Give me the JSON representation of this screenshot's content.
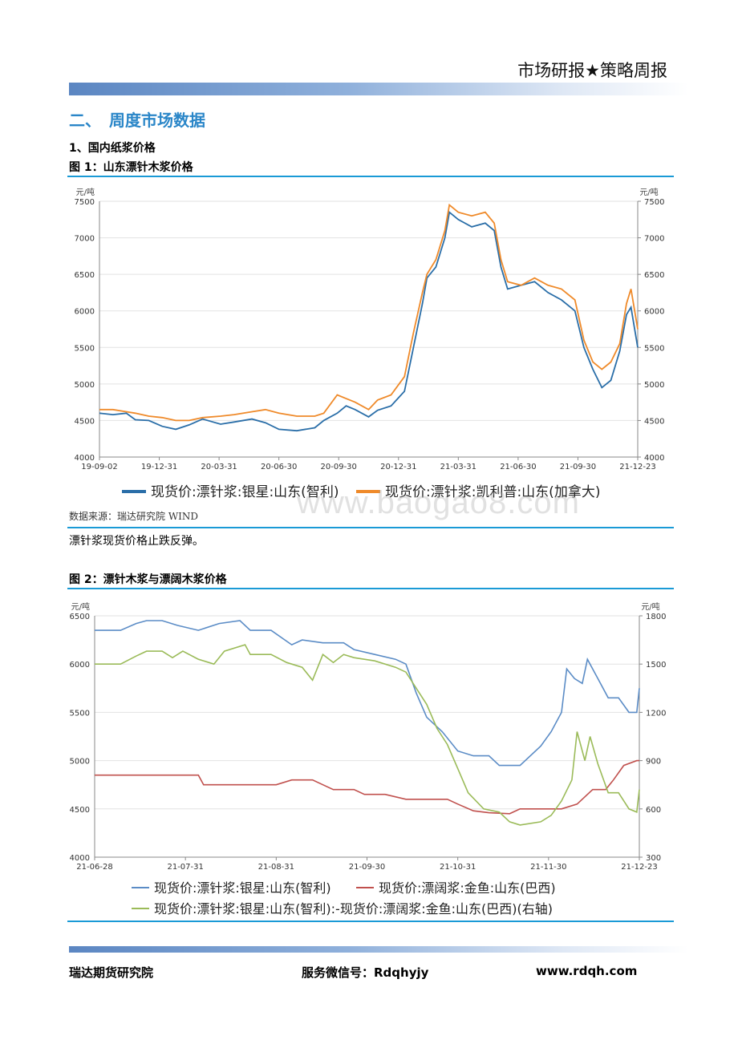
{
  "header": {
    "title": "市场研报★策略周报"
  },
  "section": {
    "title": "二、　周度市场数据",
    "sub1": "1、国内纸浆价格"
  },
  "source_text": "数据来源：瑞达研究院 WIND",
  "comment": "漂针浆现货价格止跌反弹。",
  "watermark": "www.baogao8.com",
  "footer": {
    "org": "瑞达期货研究院",
    "wechat": "服务微信号：Rdqhyjy",
    "url": "www.rdqh.com"
  },
  "chart_data": [
    {
      "type": "line",
      "title": "图 1：山东漂针木浆价格",
      "ylabel_left": "元/吨",
      "ylabel_right": "元/吨",
      "ylim": [
        4000,
        7500
      ],
      "y_ticks": [
        4000,
        4500,
        5000,
        5500,
        6000,
        6500,
        7000,
        7500
      ],
      "x_ticks": [
        "19-09-02",
        "19-12-31",
        "20-03-31",
        "20-06-30",
        "20-09-30",
        "20-12-31",
        "21-03-31",
        "21-06-30",
        "21-09-30",
        "21-12-23"
      ],
      "colors": {
        "s1": "#2a6ea8",
        "s2": "#ef8a2a"
      },
      "series": [
        {
          "name": "现货价:漂针浆:银星:山东(智利)",
          "points": [
            [
              0,
              4600
            ],
            [
              0.3,
              4580
            ],
            [
              0.6,
              4600
            ],
            [
              0.8,
              4510
            ],
            [
              1.1,
              4500
            ],
            [
              1.4,
              4420
            ],
            [
              1.7,
              4380
            ],
            [
              2.0,
              4440
            ],
            [
              2.3,
              4520
            ],
            [
              2.7,
              4450
            ],
            [
              3.0,
              4480
            ],
            [
              3.4,
              4520
            ],
            [
              3.7,
              4470
            ],
            [
              4.0,
              4380
            ],
            [
              4.4,
              4360
            ],
            [
              4.8,
              4400
            ],
            [
              5.0,
              4500
            ],
            [
              5.3,
              4600
            ],
            [
              5.5,
              4700
            ],
            [
              5.7,
              4650
            ],
            [
              6.0,
              4550
            ],
            [
              6.2,
              4640
            ],
            [
              6.5,
              4700
            ],
            [
              6.8,
              4900
            ],
            [
              7.0,
              5500
            ],
            [
              7.2,
              6100
            ],
            [
              7.3,
              6450
            ],
            [
              7.5,
              6600
            ],
            [
              7.7,
              7000
            ],
            [
              7.8,
              7350
            ],
            [
              8.0,
              7250
            ],
            [
              8.3,
              7150
            ],
            [
              8.6,
              7200
            ],
            [
              8.8,
              7100
            ],
            [
              8.95,
              6600
            ],
            [
              9.1,
              6300
            ],
            [
              9.4,
              6350
            ],
            [
              9.7,
              6400
            ],
            [
              10.0,
              6250
            ],
            [
              10.3,
              6150
            ],
            [
              10.6,
              6000
            ],
            [
              10.8,
              5500
            ],
            [
              11.0,
              5200
            ],
            [
              11.2,
              4950
            ],
            [
              11.4,
              5050
            ],
            [
              11.6,
              5450
            ],
            [
              11.75,
              5950
            ],
            [
              11.85,
              6050
            ],
            [
              12.0,
              5500
            ]
          ]
        },
        {
          "name": "现货价:漂针浆:凯利普:山东(加拿大)",
          "points": [
            [
              0,
              4650
            ],
            [
              0.3,
              4650
            ],
            [
              0.6,
              4620
            ],
            [
              0.8,
              4600
            ],
            [
              1.1,
              4560
            ],
            [
              1.4,
              4540
            ],
            [
              1.7,
              4500
            ],
            [
              2.0,
              4500
            ],
            [
              2.3,
              4540
            ],
            [
              2.7,
              4560
            ],
            [
              3.0,
              4580
            ],
            [
              3.4,
              4620
            ],
            [
              3.7,
              4650
            ],
            [
              4.0,
              4600
            ],
            [
              4.4,
              4560
            ],
            [
              4.8,
              4560
            ],
            [
              5.0,
              4600
            ],
            [
              5.3,
              4850
            ],
            [
              5.5,
              4800
            ],
            [
              5.7,
              4750
            ],
            [
              6.0,
              4650
            ],
            [
              6.2,
              4780
            ],
            [
              6.5,
              4850
            ],
            [
              6.8,
              5100
            ],
            [
              7.0,
              5700
            ],
            [
              7.2,
              6250
            ],
            [
              7.3,
              6500
            ],
            [
              7.5,
              6700
            ],
            [
              7.7,
              7100
            ],
            [
              7.8,
              7450
            ],
            [
              8.0,
              7350
            ],
            [
              8.3,
              7300
            ],
            [
              8.6,
              7350
            ],
            [
              8.8,
              7200
            ],
            [
              8.95,
              6700
            ],
            [
              9.1,
              6400
            ],
            [
              9.4,
              6350
            ],
            [
              9.7,
              6450
            ],
            [
              10.0,
              6350
            ],
            [
              10.3,
              6300
            ],
            [
              10.6,
              6150
            ],
            [
              10.8,
              5600
            ],
            [
              11.0,
              5300
            ],
            [
              11.2,
              5200
            ],
            [
              11.4,
              5300
            ],
            [
              11.6,
              5550
            ],
            [
              11.75,
              6100
            ],
            [
              11.85,
              6300
            ],
            [
              12.0,
              5750
            ]
          ]
        }
      ]
    },
    {
      "type": "line",
      "title": "图 2：漂针木浆与漂阔木浆价格",
      "ylabel_left": "元/吨",
      "ylabel_right": "元/吨",
      "ylim": [
        4000,
        6500
      ],
      "ylim_right": [
        300,
        1800
      ],
      "y_ticks": [
        4000,
        4500,
        5000,
        5500,
        6000,
        6500
      ],
      "y_ticks_right": [
        300,
        600,
        900,
        1200,
        1500,
        1800
      ],
      "x_ticks": [
        "21-06-28",
        "21-07-31",
        "21-08-31",
        "21-09-30",
        "21-10-31",
        "21-11-30",
        "21-12-23"
      ],
      "colors": {
        "s1": "#5b8cc6",
        "s2": "#c0504d",
        "s3": "#9bbb59"
      },
      "series": [
        {
          "name": "现货价:漂针浆:银星:山东(智利)",
          "points": [
            [
              0,
              6350
            ],
            [
              0.5,
              6350
            ],
            [
              0.8,
              6420
            ],
            [
              1.0,
              6450
            ],
            [
              1.3,
              6450
            ],
            [
              1.6,
              6400
            ],
            [
              2.0,
              6350
            ],
            [
              2.4,
              6420
            ],
            [
              2.8,
              6450
            ],
            [
              3.0,
              6350
            ],
            [
              3.4,
              6350
            ],
            [
              3.8,
              6200
            ],
            [
              4.0,
              6250
            ],
            [
              4.4,
              6220
            ],
            [
              4.8,
              6220
            ],
            [
              5.0,
              6150
            ],
            [
              5.4,
              6100
            ],
            [
              5.8,
              6050
            ],
            [
              6.0,
              6000
            ],
            [
              6.2,
              5700
            ],
            [
              6.4,
              5450
            ],
            [
              6.7,
              5300
            ],
            [
              7.0,
              5100
            ],
            [
              7.3,
              5050
            ],
            [
              7.6,
              5050
            ],
            [
              7.8,
              4950
            ],
            [
              8.2,
              4950
            ],
            [
              8.6,
              5150
            ],
            [
              8.8,
              5300
            ],
            [
              9.0,
              5500
            ],
            [
              9.1,
              5950
            ],
            [
              9.25,
              5850
            ],
            [
              9.4,
              5800
            ],
            [
              9.5,
              6050
            ],
            [
              9.7,
              5850
            ],
            [
              9.9,
              5650
            ],
            [
              10.1,
              5650
            ],
            [
              10.3,
              5500
            ],
            [
              10.45,
              5500
            ],
            [
              10.5,
              5750
            ]
          ]
        },
        {
          "name": "现货价:漂阔浆:金鱼:山东(巴西)",
          "points": [
            [
              0,
              4850
            ],
            [
              0.5,
              4850
            ],
            [
              1.0,
              4850
            ],
            [
              1.5,
              4850
            ],
            [
              1.8,
              4850
            ],
            [
              2.0,
              4850
            ],
            [
              2.1,
              4750
            ],
            [
              2.5,
              4750
            ],
            [
              3.0,
              4750
            ],
            [
              3.5,
              4750
            ],
            [
              3.8,
              4800
            ],
            [
              4.2,
              4800
            ],
            [
              4.4,
              4750
            ],
            [
              4.6,
              4700
            ],
            [
              5.0,
              4700
            ],
            [
              5.2,
              4650
            ],
            [
              5.6,
              4650
            ],
            [
              6.0,
              4600
            ],
            [
              6.4,
              4600
            ],
            [
              6.8,
              4600
            ],
            [
              7.0,
              4550
            ],
            [
              7.3,
              4480
            ],
            [
              7.6,
              4460
            ],
            [
              8.0,
              4450
            ],
            [
              8.2,
              4500
            ],
            [
              8.6,
              4500
            ],
            [
              9.0,
              4500
            ],
            [
              9.3,
              4550
            ],
            [
              9.6,
              4700
            ],
            [
              9.85,
              4700
            ],
            [
              10.0,
              4800
            ],
            [
              10.2,
              4950
            ],
            [
              10.45,
              5000
            ],
            [
              10.5,
              5000
            ]
          ]
        },
        {
          "name": "现货价:漂针浆:银星:山东(智利):-现货价:漂阔浆:金鱼:山东(巴西)(右轴)",
          "axis": "right",
          "points": [
            [
              0,
              1500
            ],
            [
              0.5,
              1500
            ],
            [
              0.8,
              1550
            ],
            [
              1.0,
              1580
            ],
            [
              1.3,
              1580
            ],
            [
              1.5,
              1540
            ],
            [
              1.7,
              1580
            ],
            [
              2.0,
              1530
            ],
            [
              2.3,
              1500
            ],
            [
              2.5,
              1580
            ],
            [
              2.9,
              1620
            ],
            [
              3.0,
              1560
            ],
            [
              3.4,
              1560
            ],
            [
              3.7,
              1510
            ],
            [
              4.0,
              1480
            ],
            [
              4.2,
              1400
            ],
            [
              4.4,
              1560
            ],
            [
              4.6,
              1510
            ],
            [
              4.8,
              1560
            ],
            [
              5.0,
              1540
            ],
            [
              5.4,
              1520
            ],
            [
              5.8,
              1480
            ],
            [
              6.0,
              1450
            ],
            [
              6.2,
              1350
            ],
            [
              6.4,
              1250
            ],
            [
              6.6,
              1100
            ],
            [
              6.8,
              1000
            ],
            [
              7.0,
              850
            ],
            [
              7.2,
              700
            ],
            [
              7.5,
              600
            ],
            [
              7.8,
              580
            ],
            [
              8.0,
              520
            ],
            [
              8.2,
              500
            ],
            [
              8.6,
              520
            ],
            [
              8.8,
              560
            ],
            [
              9.0,
              650
            ],
            [
              9.2,
              780
            ],
            [
              9.3,
              1080
            ],
            [
              9.45,
              900
            ],
            [
              9.55,
              1050
            ],
            [
              9.7,
              880
            ],
            [
              9.9,
              700
            ],
            [
              10.1,
              700
            ],
            [
              10.3,
              600
            ],
            [
              10.45,
              580
            ],
            [
              10.5,
              720
            ]
          ]
        }
      ]
    }
  ]
}
